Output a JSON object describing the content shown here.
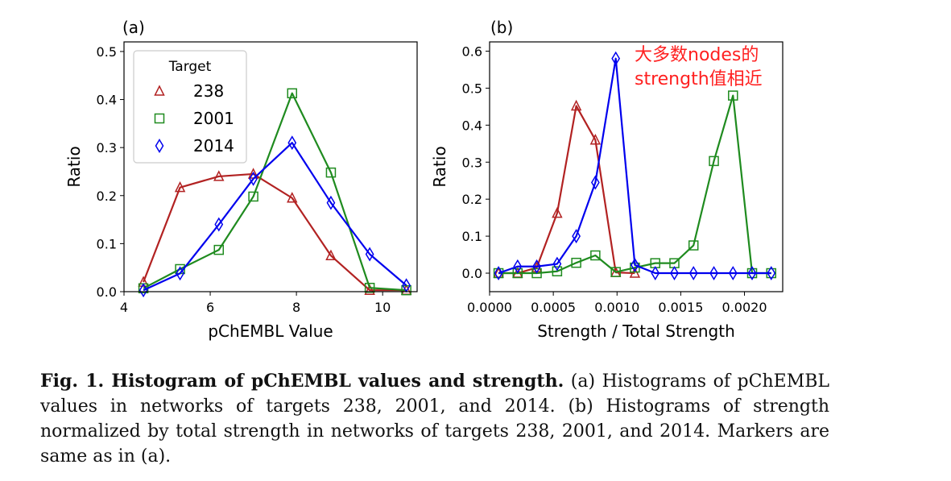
{
  "chart_data": [
    {
      "panel_label": "(a)",
      "type": "line",
      "xlabel": "pChEMBL Value",
      "ylabel": "Ratio",
      "xlim": [
        4,
        10.8
      ],
      "ylim": [
        0,
        0.52
      ],
      "xticks": [
        4,
        6,
        8,
        10
      ],
      "xtick_labels": [
        "4",
        "6",
        "8",
        "10"
      ],
      "yticks": [
        0,
        0.1,
        0.2,
        0.3,
        0.4,
        0.5
      ],
      "ytick_labels": [
        "0.0",
        "0.1",
        "0.2",
        "0.3",
        "0.4",
        "0.5"
      ],
      "grid": false,
      "legend": {
        "title": "Target",
        "placement": "upper-left"
      },
      "series": [
        {
          "name": "238",
          "color": "#b22222",
          "marker": "triangle",
          "x": [
            4.45,
            5.3,
            6.2,
            7.0,
            7.9,
            8.8,
            9.7,
            10.55
          ],
          "y": [
            0.02,
            0.217,
            0.24,
            0.245,
            0.195,
            0.075,
            0.003,
            0.003
          ]
        },
        {
          "name": "2001",
          "color": "#1f8b1f",
          "marker": "square",
          "x": [
            4.45,
            5.3,
            6.2,
            7.0,
            7.9,
            8.8,
            9.7,
            10.55
          ],
          "y": [
            0.007,
            0.047,
            0.087,
            0.198,
            0.413,
            0.248,
            0.008,
            0.003
          ]
        },
        {
          "name": "2014",
          "color": "#0000ee",
          "marker": "diamond",
          "x": [
            4.45,
            5.3,
            6.2,
            7.0,
            7.9,
            8.8,
            9.7,
            10.55
          ],
          "y": [
            0.003,
            0.038,
            0.14,
            0.235,
            0.31,
            0.185,
            0.078,
            0.013
          ]
        }
      ]
    },
    {
      "panel_label": "(b)",
      "type": "line",
      "xlabel": "Strength / Total Strength",
      "ylabel": "Ratio",
      "xlim": [
        0.0,
        0.0023
      ],
      "ylim": [
        -0.05,
        0.625
      ],
      "xticks": [
        0.0,
        0.0005,
        0.001,
        0.0015,
        0.002
      ],
      "xtick_labels": [
        "0.0000",
        "0.0005",
        "0.0010",
        "0.0015",
        "0.0020"
      ],
      "yticks": [
        0,
        0.1,
        0.2,
        0.3,
        0.4,
        0.5,
        0.6
      ],
      "ytick_labels": [
        "0.0",
        "0.1",
        "0.2",
        "0.3",
        "0.4",
        "0.5",
        "0.6"
      ],
      "grid": false,
      "annotation": {
        "lines": [
          "大多数nodes的",
          "strength值相近"
        ],
        "color": "#ff2020"
      },
      "series": [
        {
          "name": "238",
          "color": "#b22222",
          "marker": "triangle",
          "x": [
            7e-05,
            0.00022,
            0.00037,
            0.00053,
            0.00068,
            0.00083,
            0.00099,
            0.00114
          ],
          "y": [
            0.0,
            0.0,
            0.015,
            0.162,
            0.452,
            0.36,
            0.002,
            0.0
          ]
        },
        {
          "name": "2001",
          "color": "#1f8b1f",
          "marker": "square",
          "x": [
            7e-05,
            0.00022,
            0.00037,
            0.00053,
            0.00068,
            0.00083,
            0.00099,
            0.00114,
            0.0013,
            0.00145,
            0.0016,
            0.00176,
            0.00191,
            0.00206,
            0.00221
          ],
          "y": [
            0.0,
            0.0,
            0.0,
            0.005,
            0.028,
            0.048,
            0.003,
            0.015,
            0.027,
            0.027,
            0.075,
            0.303,
            0.48,
            0.0,
            0.0
          ]
        },
        {
          "name": "2014",
          "color": "#0000ee",
          "marker": "diamond",
          "x": [
            7e-05,
            0.00022,
            0.00037,
            0.00053,
            0.00068,
            0.00083,
            0.00099,
            0.00114,
            0.0013,
            0.00145,
            0.0016,
            0.00176,
            0.00191,
            0.00206,
            0.00221
          ],
          "y": [
            0.0,
            0.018,
            0.018,
            0.025,
            0.1,
            0.245,
            0.58,
            0.022,
            0.0,
            0.0,
            0.0,
            0.0,
            0.0,
            0.0,
            0.0
          ]
        }
      ]
    }
  ],
  "caption": {
    "lead": "Fig. 1. Histogram of pChEMBL values and strength.",
    "body": " (a) Histograms of pChEMBL values in networks of targets 238, 2001, and 2014. (b) Histograms of strength normalized by total strength in networks of targets 238, 2001, and 2014. Markers are same as in (a)."
  }
}
